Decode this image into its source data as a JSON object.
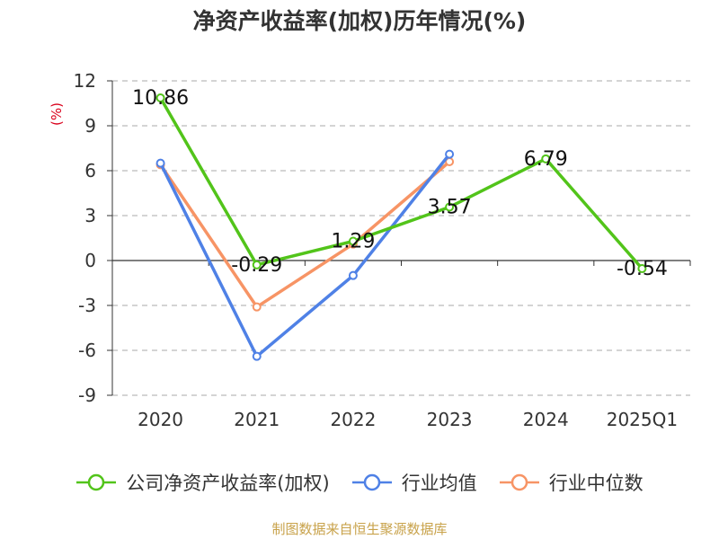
{
  "chart_data": {
    "type": "line",
    "title": "净资产收益率(加权)历年情况(%)",
    "ylabel": "(%)",
    "xlabel": "",
    "categories": [
      "2020",
      "2021",
      "2022",
      "2023",
      "2024",
      "2025Q1"
    ],
    "ylim": [
      -9,
      12
    ],
    "yticks": [
      12,
      9,
      6,
      3,
      0,
      -3,
      -6,
      -9
    ],
    "grid": true,
    "legend_position": "bottom",
    "series": [
      {
        "name": "公司净资产收益率(加权)",
        "color": "#52c41a",
        "values": [
          10.86,
          -0.29,
          1.29,
          3.57,
          6.79,
          -0.54
        ],
        "labels": [
          "10.86",
          "-0.29",
          "1.29",
          "3.57",
          "6.79",
          "-0.54"
        ]
      },
      {
        "name": "行业均值",
        "color": "#4f81e6",
        "values": [
          6.5,
          -6.4,
          -1.0,
          7.1,
          null,
          null
        ]
      },
      {
        "name": "行业中位数",
        "color": "#f79465",
        "values": [
          6.4,
          -3.1,
          1.1,
          6.6,
          null,
          null
        ]
      }
    ]
  },
  "source_note": "制图数据来自恒生聚源数据库"
}
